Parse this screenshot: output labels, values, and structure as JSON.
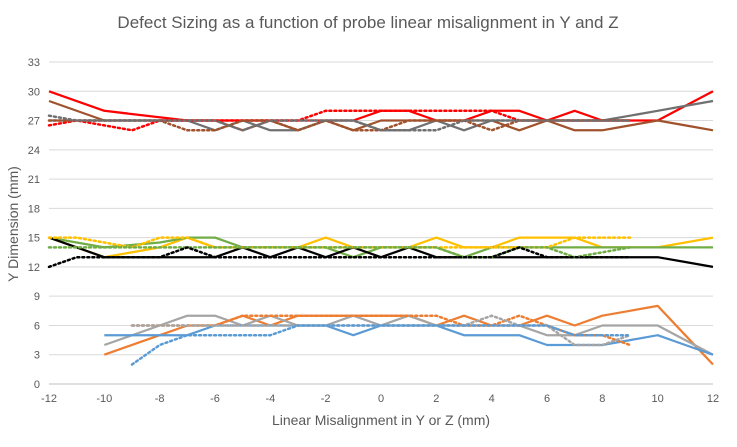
{
  "chart_data": {
    "type": "line",
    "title": "Defect Sizing as a function of probe linear misalignment in Y and Z",
    "xlabel": "Linear Misalignment in Y or Z (mm)",
    "ylabel": "Y Dimension (mm)",
    "xlim": [
      -12,
      12
    ],
    "ylim": [
      0,
      33
    ],
    "xticks": [
      -12,
      -10,
      -8,
      -6,
      -4,
      -2,
      0,
      2,
      4,
      6,
      8,
      10,
      12
    ],
    "yticks": [
      0,
      3,
      6,
      9,
      12,
      15,
      18,
      21,
      24,
      27,
      30,
      33
    ],
    "grid": true,
    "legend": "none",
    "series": [
      {
        "color": "#ff0000",
        "dash": "solid",
        "x": [
          -12,
          -10,
          -7,
          -6,
          -5,
          -4,
          -3,
          -2,
          -1,
          0,
          1,
          2,
          3,
          4,
          5,
          6,
          7,
          8,
          9,
          10,
          11,
          12
        ],
        "y": [
          30,
          28,
          27,
          27,
          27,
          27,
          27,
          27,
          27,
          28,
          28,
          27,
          27,
          28,
          28,
          27,
          28,
          27,
          27,
          27,
          28.5,
          30
        ]
      },
      {
        "color": "#a0522d",
        "dash": "solid",
        "x": [
          -12,
          -10,
          -8,
          -7,
          -6,
          -5,
          -4,
          -3,
          -2,
          -1,
          0,
          1,
          2,
          3,
          4,
          5,
          6,
          7,
          8,
          9,
          10,
          11,
          12
        ],
        "y": [
          29,
          27,
          27,
          27,
          27,
          26,
          27,
          26,
          27,
          26,
          27,
          27,
          27,
          27,
          27,
          26,
          27,
          26,
          26,
          26.5,
          27,
          26.5,
          26
        ]
      },
      {
        "color": "#707070",
        "dash": "solid",
        "x": [
          -12,
          -10,
          -8,
          -7,
          -6,
          -5,
          -4,
          -3,
          -2,
          -1,
          0,
          1,
          2,
          3,
          4,
          5,
          6,
          7,
          8,
          9,
          10,
          11,
          12
        ],
        "y": [
          27,
          27,
          27,
          27,
          26,
          27,
          26,
          26,
          27,
          27,
          26,
          26,
          27,
          26,
          27,
          27,
          27,
          27,
          27,
          27.5,
          28,
          28.5,
          29
        ]
      },
      {
        "color": "#ff0000",
        "dash": "dotted",
        "x": [
          -12,
          -11,
          -10,
          -9,
          -8,
          -7,
          -6,
          -5,
          -4,
          -3,
          -2,
          -1,
          0,
          1,
          2,
          3,
          4,
          5,
          6,
          7,
          8,
          9
        ],
        "y": [
          26.5,
          27,
          26.5,
          26,
          27,
          27,
          27,
          27,
          27,
          27,
          28,
          28,
          28,
          28,
          28,
          28,
          28,
          27,
          27,
          27,
          27,
          27
        ]
      },
      {
        "color": "#a0522d",
        "dash": "dotted",
        "x": [
          -12,
          -11,
          -10,
          -9,
          -8,
          -7,
          -6,
          -5,
          -4,
          -3,
          -2,
          -1,
          0,
          1,
          2,
          3,
          4,
          5,
          6,
          7,
          8,
          9
        ],
        "y": [
          27,
          27,
          27,
          27,
          27,
          26,
          26,
          27,
          27,
          26,
          27,
          26,
          26,
          27,
          27,
          27,
          26,
          27,
          27,
          27,
          27,
          27
        ]
      },
      {
        "color": "#707070",
        "dash": "dotted",
        "x": [
          -12,
          -11,
          -10,
          -9,
          -8,
          -7,
          -6,
          -5,
          -4,
          -3,
          -2,
          -1,
          0,
          1,
          2,
          3,
          4,
          5,
          6,
          7,
          8,
          9
        ],
        "y": [
          27.5,
          27,
          27,
          27,
          27,
          27,
          27,
          26,
          27,
          27,
          27,
          27,
          26,
          26,
          26,
          27,
          27,
          27,
          27,
          27,
          27,
          27
        ]
      },
      {
        "color": "#ffc000",
        "dash": "solid",
        "x": [
          -12,
          -10,
          -8,
          -7,
          -6,
          -5,
          -4,
          -3,
          -2,
          -1,
          0,
          1,
          2,
          3,
          4,
          5,
          6,
          7,
          8,
          9,
          10,
          11,
          12
        ],
        "y": [
          15,
          13,
          14,
          15,
          14,
          14,
          14,
          14,
          15,
          14,
          14,
          14,
          15,
          14,
          14,
          15,
          15,
          15,
          14,
          14,
          14,
          14.5,
          15
        ]
      },
      {
        "color": "#70ad47",
        "dash": "solid",
        "x": [
          -12,
          -10,
          -8,
          -7,
          -6,
          -5,
          -4,
          -3,
          -2,
          -1,
          0,
          1,
          2,
          3,
          4,
          5,
          6,
          7,
          8,
          9,
          10,
          11,
          12
        ],
        "y": [
          15,
          14,
          14.5,
          15,
          15,
          14,
          14,
          14,
          14,
          13,
          14,
          14,
          14,
          13,
          14,
          14,
          14,
          14,
          14,
          14,
          14,
          14,
          14
        ]
      },
      {
        "color": "#000000",
        "dash": "solid",
        "x": [
          -12,
          -10,
          -8,
          -7,
          -6,
          -5,
          -4,
          -3,
          -2,
          -1,
          0,
          1,
          2,
          3,
          4,
          5,
          6,
          7,
          8,
          9,
          10,
          11,
          12
        ],
        "y": [
          15,
          13,
          13,
          13,
          13,
          14,
          13,
          14,
          13,
          14,
          13,
          14,
          13,
          13,
          13,
          13,
          13,
          13,
          13,
          13,
          13,
          12.5,
          12
        ]
      },
      {
        "color": "#ffc000",
        "dash": "dotted",
        "x": [
          -12,
          -11,
          -10,
          -9,
          -8,
          -7,
          -6,
          -5,
          -4,
          -3,
          -2,
          -1,
          0,
          1,
          2,
          3,
          4,
          5,
          6,
          7,
          8,
          9
        ],
        "y": [
          15,
          15,
          14.5,
          14,
          15,
          15,
          14,
          14,
          14,
          14,
          14,
          14,
          14,
          14,
          14,
          14,
          14,
          14,
          14,
          15,
          15,
          15
        ]
      },
      {
        "color": "#70ad47",
        "dash": "dotted",
        "x": [
          -12,
          -11,
          -10,
          -9,
          -8,
          -7,
          -6,
          -5,
          -4,
          -3,
          -2,
          -1,
          0,
          1,
          2,
          3,
          4,
          5,
          6,
          7,
          8,
          9
        ],
        "y": [
          14,
          14,
          14,
          14,
          14,
          14,
          14,
          14,
          14,
          14,
          14,
          14,
          14,
          14,
          14,
          13,
          13,
          14,
          14,
          13,
          13.5,
          14
        ]
      },
      {
        "color": "#000000",
        "dash": "dotted",
        "x": [
          -12,
          -11,
          -10,
          -9,
          -8,
          -7,
          -6,
          -5,
          -4,
          -3,
          -2,
          -1,
          0,
          1,
          2,
          3,
          4,
          5,
          6,
          7,
          8,
          9
        ],
        "y": [
          12,
          13,
          13,
          13,
          13,
          14,
          13,
          13,
          13,
          13,
          13,
          13,
          13,
          13,
          13,
          13,
          13,
          14,
          13,
          13,
          13,
          13
        ]
      },
      {
        "color": "#ed7d31",
        "dash": "solid",
        "x": [
          -10,
          -8,
          -7,
          -6,
          -5,
          -4,
          -3,
          -2,
          -1,
          0,
          1,
          2,
          3,
          4,
          5,
          6,
          7,
          8,
          9,
          10,
          11,
          12
        ],
        "y": [
          3,
          5,
          6,
          6,
          7,
          6,
          7,
          7,
          7,
          7,
          7,
          6,
          7,
          6,
          6,
          7,
          6,
          7,
          7.5,
          8,
          5,
          2
        ]
      },
      {
        "color": "#a5a5a5",
        "dash": "solid",
        "x": [
          -10,
          -8,
          -7,
          -6,
          -5,
          -4,
          -3,
          -2,
          -1,
          0,
          1,
          2,
          3,
          4,
          5,
          6,
          7,
          8,
          9,
          10,
          11,
          12
        ],
        "y": [
          4,
          6,
          7,
          7,
          6,
          7,
          6,
          6,
          7,
          6,
          7,
          6,
          6,
          6,
          6,
          5,
          5,
          6,
          6,
          6,
          4.5,
          3
        ]
      },
      {
        "color": "#5b9bd5",
        "dash": "solid",
        "x": [
          -10,
          -8,
          -7,
          -6,
          -5,
          -4,
          -3,
          -2,
          -1,
          0,
          1,
          2,
          3,
          4,
          5,
          6,
          7,
          8,
          9,
          10,
          11,
          12
        ],
        "y": [
          5,
          5,
          5,
          6,
          6,
          6,
          6,
          6,
          5,
          6,
          6,
          6,
          5,
          5,
          5,
          4,
          4,
          4,
          4.5,
          5,
          4,
          3
        ]
      },
      {
        "color": "#ed7d31",
        "dash": "dotted",
        "x": [
          -9,
          -8,
          -7,
          -6,
          -5,
          -4,
          -3,
          -2,
          -1,
          0,
          1,
          2,
          3,
          4,
          5,
          6,
          7,
          8,
          9
        ],
        "y": [
          6,
          6,
          6,
          6,
          7,
          7,
          7,
          7,
          7,
          7,
          7,
          7,
          6,
          6,
          7,
          6,
          5,
          5,
          4
        ]
      },
      {
        "color": "#a5a5a5",
        "dash": "dotted",
        "x": [
          -9,
          -8,
          -7,
          -6,
          -5,
          -4,
          -3,
          -2,
          -1,
          0,
          1,
          2,
          3,
          4,
          5,
          6,
          7,
          8,
          9
        ],
        "y": [
          6,
          6,
          6,
          6,
          6,
          6,
          6,
          6,
          6,
          6,
          6,
          6,
          6,
          7,
          6,
          6,
          4,
          4,
          5
        ]
      },
      {
        "color": "#5b9bd5",
        "dash": "dotted",
        "x": [
          -9,
          -8,
          -7,
          -6,
          -5,
          -4,
          -3,
          -2,
          -1,
          0,
          1,
          2,
          3,
          4,
          5,
          6,
          7,
          8,
          9
        ],
        "y": [
          2,
          4,
          5,
          5,
          5,
          5,
          6,
          6,
          6,
          6,
          6,
          6,
          6,
          6,
          6,
          6,
          5,
          5,
          5
        ]
      }
    ]
  }
}
